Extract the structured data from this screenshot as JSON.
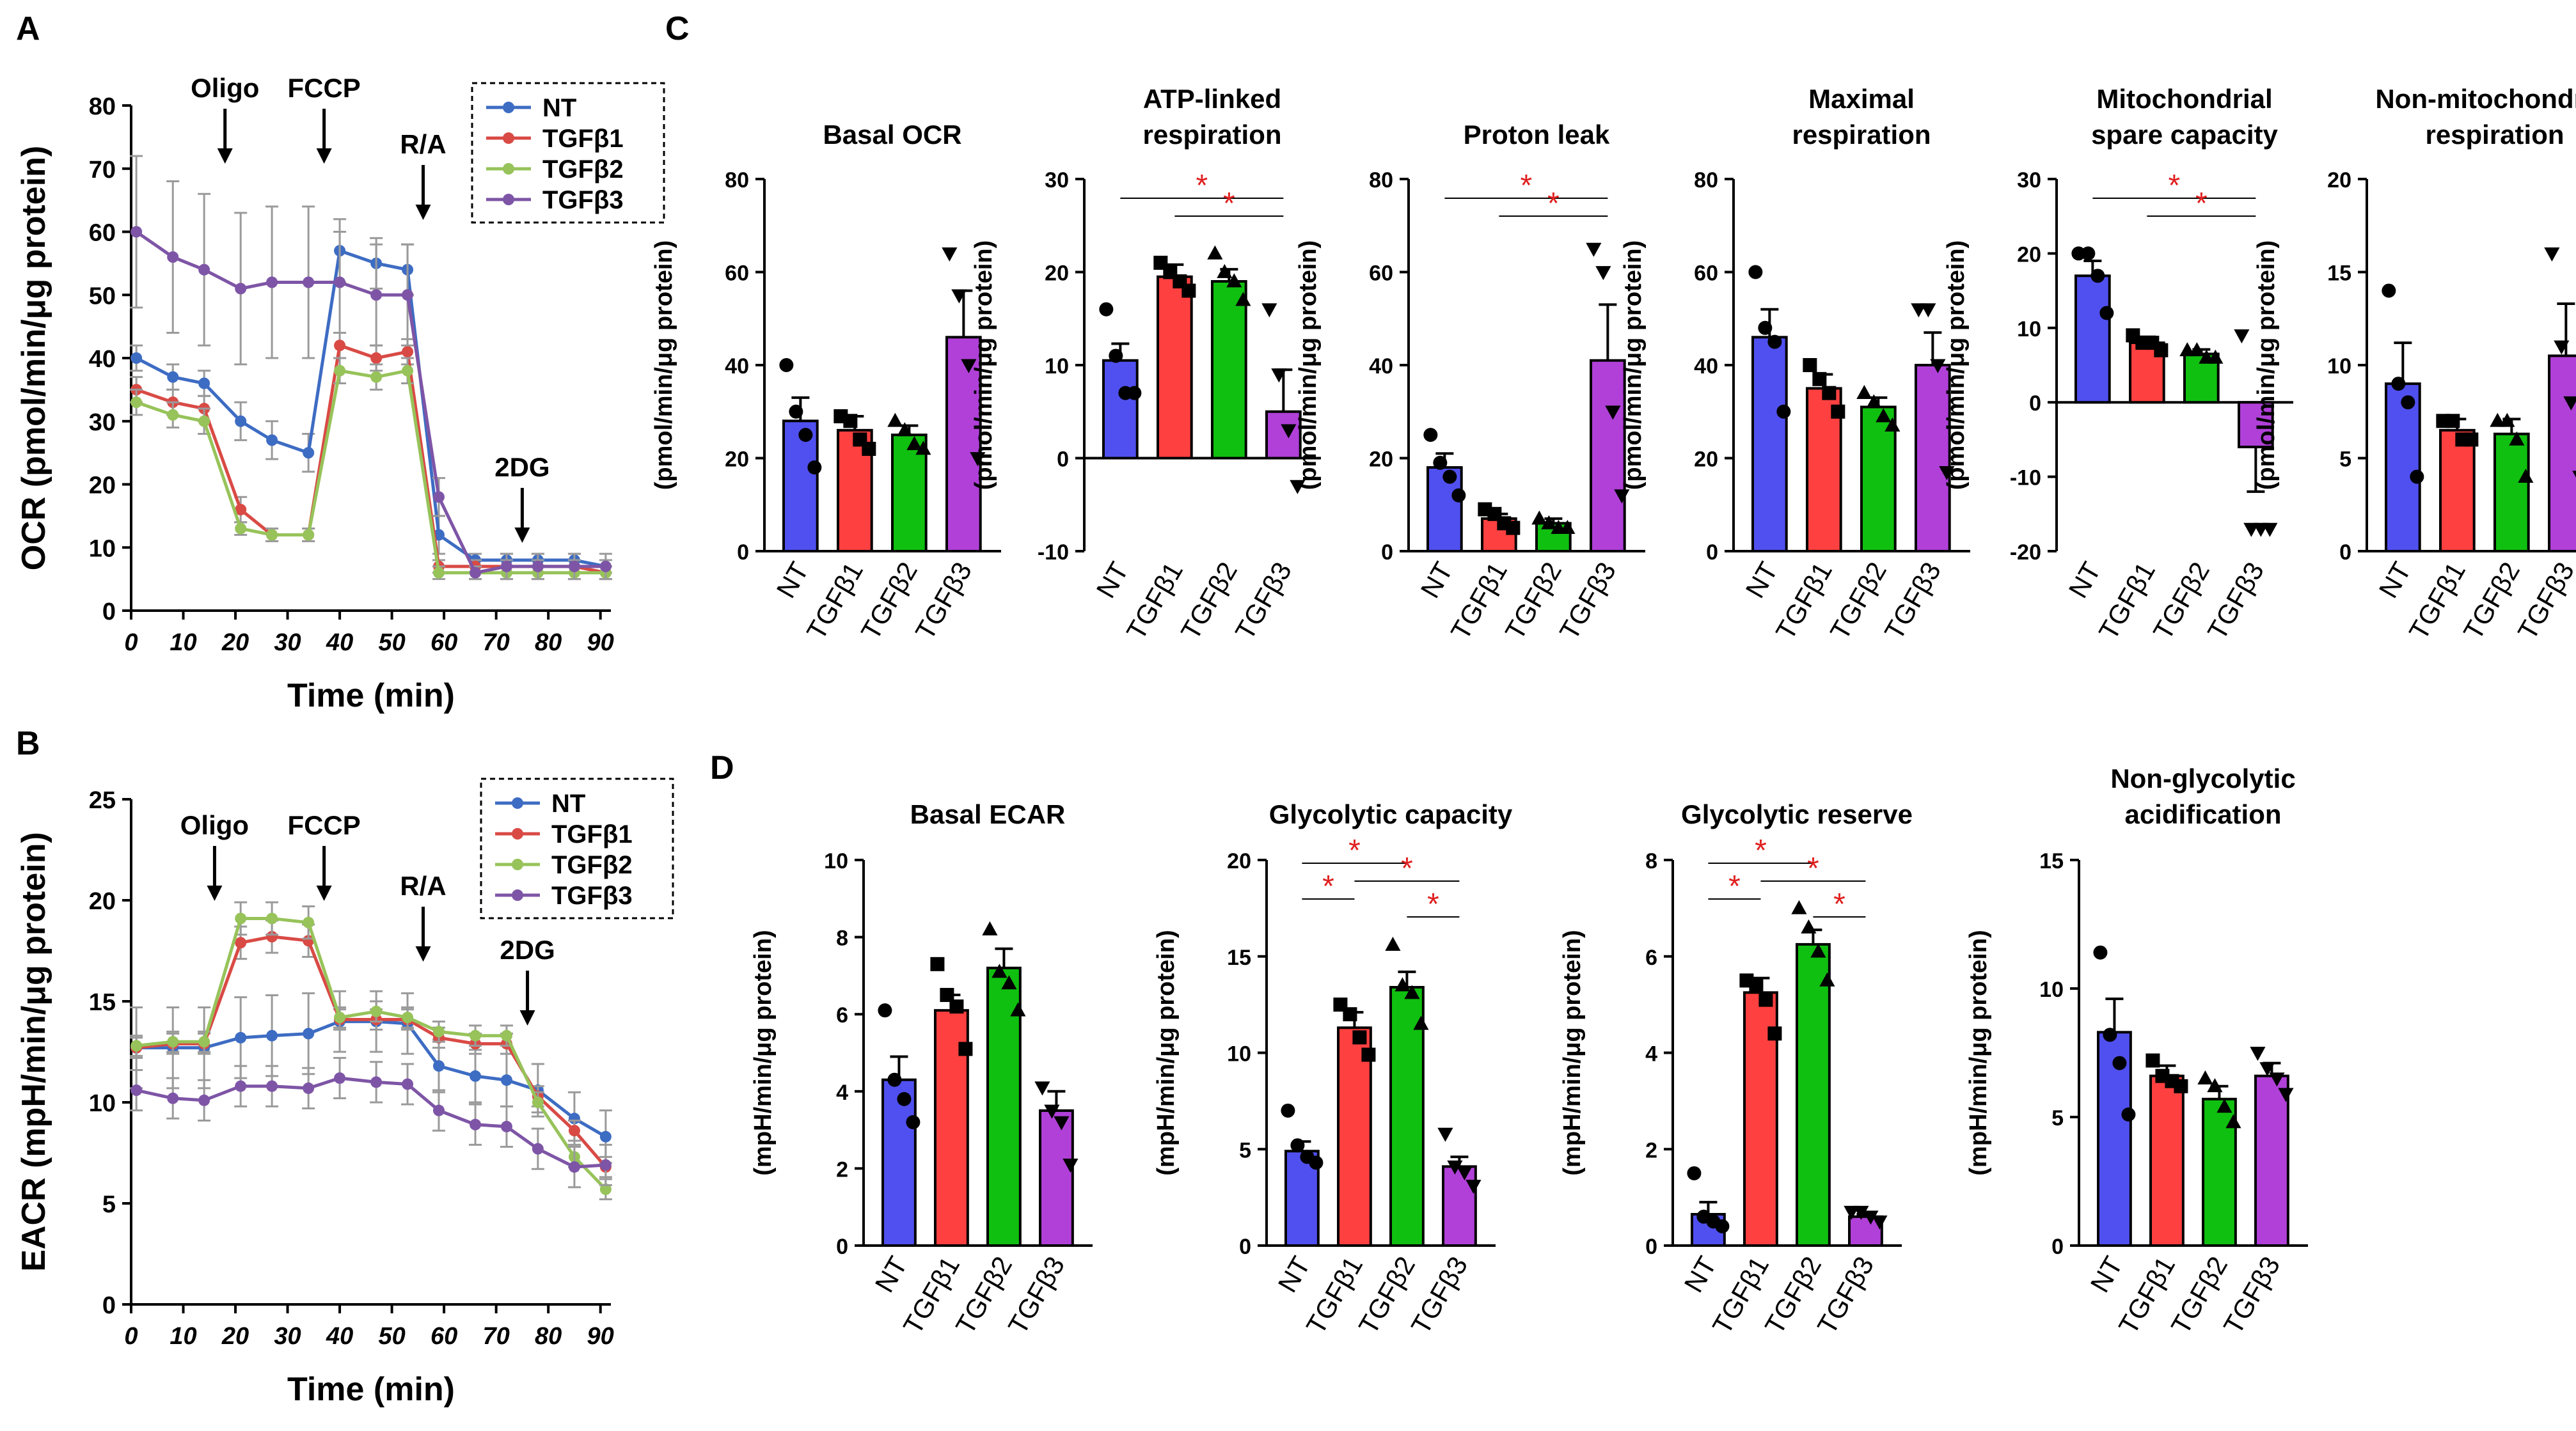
{
  "figure_type": "multi-panel scientific figure",
  "colors": {
    "NT": "#3D6CC3",
    "TGFb1": "#D94A45",
    "TGFb2": "#97C35A",
    "TGFb3": "#7E55A6",
    "barNT": "#5050F0",
    "barTGFb1": "#FF4040",
    "barTGFb2": "#10C010",
    "barTGFb3": "#B040D8",
    "sig": "#E02020"
  },
  "groups": [
    "NT",
    "TGFβ1",
    "TGFβ2",
    "TGFβ3"
  ],
  "chart_data": [
    {
      "panel_label": "A",
      "type": "line",
      "xlabel": "Time (min)",
      "ylabel": "OCR (pmol/min/μg protein)",
      "xlim": [
        0,
        92
      ],
      "ylim": [
        0,
        80
      ],
      "x_ticks": [
        "0",
        "10",
        "20",
        "30",
        "40",
        "50",
        "60",
        "70",
        "80",
        "90"
      ],
      "y_ticks": [
        "0",
        "10",
        "20",
        "30",
        "40",
        "50",
        "60",
        "70",
        "80"
      ],
      "x": [
        1,
        8,
        14,
        21,
        27,
        34,
        40,
        47,
        53,
        59,
        66,
        72,
        78,
        85,
        91
      ],
      "annotations": [
        {
          "label": "Oligo",
          "x": 18
        },
        {
          "label": "FCCP",
          "x": 37
        },
        {
          "label": "R/A",
          "x": 56
        },
        {
          "label": "2DG",
          "x": 75
        }
      ],
      "legend": "top-right",
      "series": [
        {
          "name": "NT",
          "values": [
            40,
            37,
            36,
            30,
            27,
            25,
            57,
            55,
            54,
            12,
            8,
            8,
            8,
            8,
            7
          ],
          "err": [
            2,
            2,
            2,
            3,
            3,
            3,
            5,
            4,
            4,
            3,
            1,
            1,
            1,
            1,
            1
          ]
        },
        {
          "name": "TGFβ1",
          "values": [
            35,
            33,
            32,
            16,
            12,
            12,
            42,
            40,
            41,
            7,
            7,
            7,
            7,
            7,
            6
          ],
          "err": [
            2,
            2,
            2,
            2,
            1,
            1,
            2,
            2,
            2,
            1,
            1,
            1,
            1,
            1,
            1
          ]
        },
        {
          "name": "TGFβ2",
          "values": [
            33,
            31,
            30,
            13,
            12,
            12,
            38,
            37,
            38,
            6,
            6,
            6,
            6,
            6,
            6
          ],
          "err": [
            2,
            2,
            2,
            1,
            1,
            1,
            2,
            2,
            2,
            1,
            1,
            1,
            1,
            1,
            1
          ]
        },
        {
          "name": "TGFβ3",
          "values": [
            60,
            56,
            54,
            51,
            52,
            52,
            52,
            50,
            50,
            18,
            6,
            7,
            7,
            7,
            7
          ],
          "err": [
            12,
            12,
            12,
            12,
            12,
            12,
            8,
            8,
            8,
            3,
            1,
            2,
            2,
            2,
            2
          ]
        }
      ]
    },
    {
      "panel_label": "B",
      "type": "line",
      "xlabel": "Time (min)",
      "ylabel": "EACR (mpH/min/μg protein)",
      "xlim": [
        0,
        92
      ],
      "ylim": [
        0,
        25
      ],
      "x_ticks": [
        "0",
        "10",
        "20",
        "30",
        "40",
        "50",
        "60",
        "70",
        "80",
        "90"
      ],
      "y_ticks": [
        "0",
        "5",
        "10",
        "15",
        "20",
        "25"
      ],
      "x": [
        1,
        8,
        14,
        21,
        27,
        34,
        40,
        47,
        53,
        59,
        66,
        72,
        78,
        85,
        91
      ],
      "annotations": [
        {
          "label": "Oligo",
          "x": 16
        },
        {
          "label": "FCCP",
          "x": 37
        },
        {
          "label": "R/A",
          "x": 56
        },
        {
          "label": "2DG",
          "x": 76
        }
      ],
      "legend": "top-right",
      "series": [
        {
          "name": "NT",
          "values": [
            12.7,
            12.7,
            12.7,
            13.2,
            13.3,
            13.4,
            14,
            14,
            13.9,
            11.8,
            11.3,
            11.1,
            10.6,
            9.2,
            8.3
          ],
          "err": [
            2,
            2,
            2,
            2,
            2,
            2,
            1.5,
            1.5,
            1.5,
            1.3,
            1.3,
            1.3,
            1.3,
            1.3,
            1.3
          ]
        },
        {
          "name": "TGFβ1",
          "values": [
            12.7,
            12.9,
            12.9,
            17.9,
            18.2,
            18,
            14.1,
            14.1,
            14.1,
            13.2,
            12.9,
            12.9,
            10.3,
            8.6,
            6.8
          ],
          "err": [
            0.5,
            0.5,
            0.5,
            0.8,
            0.8,
            0.8,
            0.5,
            0.5,
            0.5,
            0.5,
            0.5,
            0.5,
            0.5,
            0.5,
            0.5
          ]
        },
        {
          "name": "TGFβ2",
          "values": [
            12.8,
            13,
            13,
            19.1,
            19.1,
            18.9,
            14.2,
            14.5,
            14.2,
            13.5,
            13.3,
            13.3,
            10,
            7.3,
            5.7
          ],
          "err": [
            0.5,
            0.5,
            0.5,
            0.8,
            0.8,
            0.8,
            0.5,
            0.5,
            0.5,
            0.5,
            0.5,
            0.5,
            0.5,
            0.5,
            0.5
          ]
        },
        {
          "name": "TGFβ3",
          "values": [
            10.6,
            10.2,
            10.1,
            10.8,
            10.8,
            10.7,
            11.2,
            11,
            10.9,
            9.6,
            8.9,
            8.8,
            7.7,
            6.8,
            6.9
          ],
          "err": [
            1,
            1,
            1,
            1,
            1,
            1,
            1,
            1,
            1,
            1,
            1,
            1,
            1,
            1,
            1
          ]
        }
      ]
    },
    {
      "panel_label": "C",
      "type": "bar",
      "title": "Basal OCR",
      "ylabel": "(pmol/min/μg protein)",
      "ylim": [
        0,
        80
      ],
      "y_ticks": [
        "0",
        "20",
        "40",
        "60",
        "80"
      ],
      "categories": [
        "NT",
        "TGFβ1",
        "TGFβ2",
        "TGFβ3"
      ],
      "values": [
        28,
        26,
        25,
        46
      ],
      "err": [
        5,
        3,
        2,
        10
      ],
      "points": [
        [
          40,
          30,
          25,
          18
        ],
        [
          29,
          28,
          24,
          22
        ],
        [
          28,
          26,
          23,
          22
        ],
        [
          64,
          55,
          40,
          20
        ]
      ],
      "sig": []
    },
    {
      "type": "bar",
      "title": "ATP-linked\nrespiration",
      "ylabel": "(pmol/min/μg protein)",
      "ylim": [
        -10,
        30
      ],
      "y_ticks": [
        "-10",
        "0",
        "10",
        "20",
        "30"
      ],
      "categories": [
        "NT",
        "TGFβ1",
        "TGFβ2",
        "TGFβ3"
      ],
      "values": [
        10.5,
        19.5,
        19,
        5
      ],
      "err": [
        1.8,
        1.3,
        1.3,
        4.5
      ],
      "points": [
        [
          16,
          11,
          7,
          7
        ],
        [
          21,
          20,
          19,
          18
        ],
        [
          22,
          20,
          19,
          17
        ],
        [
          16,
          9,
          3,
          -3
        ]
      ],
      "sig": [
        [
          0,
          3
        ],
        [
          1,
          3
        ]
      ]
    },
    {
      "type": "bar",
      "title": "Proton leak",
      "ylabel": "(pmol/min/μg protein)",
      "ylim": [
        0,
        80
      ],
      "y_ticks": [
        "0",
        "20",
        "40",
        "60",
        "80"
      ],
      "categories": [
        "NT",
        "TGFβ1",
        "TGFβ2",
        "TGFβ3"
      ],
      "values": [
        18,
        7,
        6,
        41
      ],
      "err": [
        3,
        1,
        1,
        12
      ],
      "points": [
        [
          25,
          19,
          16,
          12
        ],
        [
          9,
          8,
          6,
          5
        ],
        [
          7,
          6,
          5,
          5
        ],
        [
          65,
          60,
          30,
          12
        ]
      ],
      "sig": [
        [
          0,
          3
        ],
        [
          1,
          3
        ]
      ]
    },
    {
      "type": "bar",
      "title": "Maximal\nrespiration",
      "ylabel": "(pmol/min/μg protein)",
      "ylim": [
        0,
        80
      ],
      "y_ticks": [
        "0",
        "20",
        "40",
        "60",
        "80"
      ],
      "categories": [
        "NT",
        "TGFβ1",
        "TGFβ2",
        "TGFβ3"
      ],
      "values": [
        46,
        35,
        31,
        40
      ],
      "err": [
        6,
        3,
        2,
        7
      ],
      "points": [
        [
          60,
          48,
          45,
          30
        ],
        [
          40,
          37,
          34,
          30
        ],
        [
          34,
          32,
          29,
          27
        ],
        [
          52,
          52,
          40,
          17
        ]
      ],
      "sig": []
    },
    {
      "type": "bar",
      "title": "Mitochondrial\nspare capacity",
      "ylabel": "(pmol/min/μg protein)",
      "ylim": [
        -20,
        30
      ],
      "y_ticks": [
        "-20",
        "-10",
        "0",
        "10",
        "20",
        "30"
      ],
      "categories": [
        "NT",
        "TGFβ1",
        "TGFβ2",
        "TGFβ3"
      ],
      "values": [
        17,
        8,
        6.5,
        -6
      ],
      "err": [
        2,
        0.8,
        0.6,
        6
      ],
      "points": [
        [
          20,
          20,
          17,
          12
        ],
        [
          9,
          8,
          8,
          7
        ],
        [
          7,
          7,
          6,
          6
        ],
        [
          9,
          -17,
          -17,
          -17
        ]
      ],
      "sig": [
        [
          0,
          3
        ],
        [
          1,
          3
        ]
      ]
    },
    {
      "type": "bar",
      "title": "Non-mitochondrial\nrespiration",
      "ylabel": "(pmol/min/μg protein)",
      "ylim": [
        0,
        20
      ],
      "y_ticks": [
        "0",
        "5",
        "10",
        "15",
        "20"
      ],
      "categories": [
        "NT",
        "TGFβ1",
        "TGFβ2",
        "TGFβ3"
      ],
      "values": [
        9,
        6.5,
        6.3,
        10.5
      ],
      "err": [
        2.2,
        0.6,
        0.8,
        2.8
      ],
      "points": [
        [
          14,
          9,
          8,
          4
        ],
        [
          7,
          7,
          6,
          6
        ],
        [
          7,
          7,
          6,
          4
        ],
        [
          16,
          11,
          8,
          4
        ]
      ],
      "sig": []
    },
    {
      "panel_label": "D",
      "type": "bar",
      "title": "Basal ECAR",
      "ylabel": "(mpH/min/μg protein)",
      "ylim": [
        0,
        10
      ],
      "y_ticks": [
        "0",
        "2",
        "4",
        "6",
        "8",
        "10"
      ],
      "categories": [
        "NT",
        "TGFβ1",
        "TGFβ2",
        "TGFβ3"
      ],
      "values": [
        4.3,
        6.1,
        7.2,
        3.5
      ],
      "err": [
        0.6,
        0.4,
        0.5,
        0.5
      ],
      "points": [
        [
          6.1,
          4.3,
          3.8,
          3.2
        ],
        [
          7.3,
          6.5,
          6.2,
          5.1
        ],
        [
          8.2,
          7.1,
          6.8,
          6.1
        ],
        [
          4.1,
          3.5,
          3.2,
          2.1
        ]
      ],
      "sig": []
    },
    {
      "type": "bar",
      "title": "Glycolytic capacity",
      "ylabel": "(mpH/min/μg protein)",
      "ylim": [
        0,
        20
      ],
      "y_ticks": [
        "0",
        "5",
        "10",
        "15",
        "20"
      ],
      "categories": [
        "NT",
        "TGFβ1",
        "TGFβ2",
        "TGFβ3"
      ],
      "values": [
        4.9,
        11.3,
        13.4,
        4.1
      ],
      "err": [
        0.5,
        0.8,
        0.8,
        0.5
      ],
      "points": [
        [
          7,
          5.2,
          4.6,
          4.3
        ],
        [
          12.5,
          12,
          10.8,
          9.9
        ],
        [
          15.6,
          13.5,
          13.1,
          11.5
        ],
        [
          5.8,
          4.1,
          3.8,
          3.1
        ]
      ],
      "sig": [
        [
          0,
          1
        ],
        [
          0,
          2
        ],
        [
          1,
          3
        ],
        [
          2,
          3
        ]
      ]
    },
    {
      "type": "bar",
      "title": "Glycolytic reserve",
      "ylabel": "(mpH/min/μg protein)",
      "ylim": [
        0,
        8
      ],
      "y_ticks": [
        "0",
        "2",
        "4",
        "6",
        "8"
      ],
      "categories": [
        "NT",
        "TGFβ1",
        "TGFβ2",
        "TGFβ3"
      ],
      "values": [
        0.65,
        5.25,
        6.25,
        0.6
      ],
      "err": [
        0.25,
        0.3,
        0.3,
        0.05
      ],
      "points": [
        [
          1.5,
          0.6,
          0.5,
          0.4
        ],
        [
          5.5,
          5.4,
          5.1,
          4.4
        ],
        [
          7,
          6.6,
          6.1,
          5.5
        ],
        [
          0.7,
          0.7,
          0.6,
          0.5
        ]
      ],
      "sig": [
        [
          0,
          1
        ],
        [
          0,
          2
        ],
        [
          1,
          3
        ],
        [
          2,
          3
        ]
      ]
    },
    {
      "type": "bar",
      "title": "Non-glycolytic\nacidification",
      "ylabel": "(mpH/min/μg protein)",
      "ylim": [
        0,
        15
      ],
      "y_ticks": [
        "0",
        "5",
        "10",
        "15"
      ],
      "categories": [
        "NT",
        "TGFβ1",
        "TGFβ2",
        "TGFβ3"
      ],
      "values": [
        8.3,
        6.6,
        5.7,
        6.6
      ],
      "err": [
        1.3,
        0.4,
        0.5,
        0.5
      ],
      "points": [
        [
          11.4,
          8.2,
          7.1,
          5.1
        ],
        [
          7.2,
          6.6,
          6.4,
          6.2
        ],
        [
          6.5,
          6.2,
          5.4,
          4.8
        ],
        [
          7.5,
          6.9,
          6.5,
          5.9
        ]
      ],
      "sig": []
    }
  ]
}
